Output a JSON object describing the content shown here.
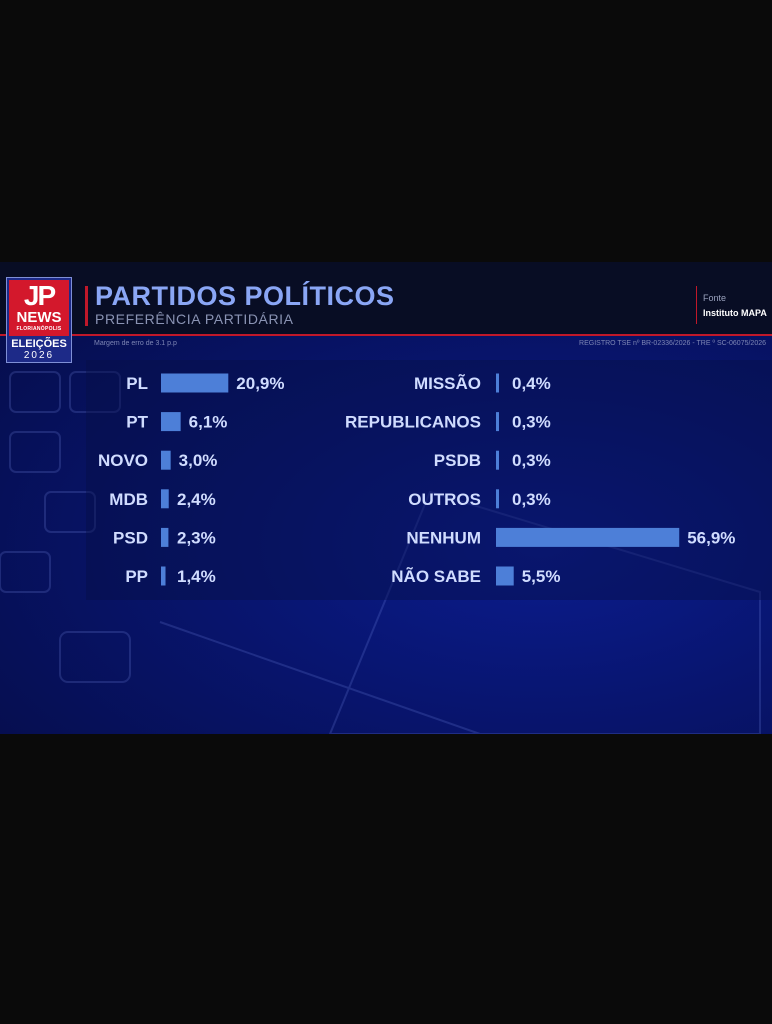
{
  "header": {
    "logo": {
      "jp": "JP",
      "news": "NEWS",
      "city": "FLORIANÓPOLIS",
      "elections": "ELEIÇÕES",
      "year": "2026"
    },
    "title": "PARTIDOS POLÍTICOS",
    "subtitle": "PREFERÊNCIA PARTIDÁRIA",
    "source_label": "Fonte",
    "source_name": "Instituto MAPA",
    "margin_note": "Margem de erro de 3.1 p.p",
    "registry": "REGISTRO TSE nº BR-02336/2026 - TRE º SC-06075/2026"
  },
  "colors": {
    "bar": "#4d7fd8",
    "accent_red": "#c0182a",
    "title": "#8aa6f5"
  },
  "chart_data": [
    {
      "type": "bar",
      "orientation": "horizontal",
      "categories": [
        "PL",
        "PT",
        "NOVO",
        "MDB",
        "PSD",
        "PP"
      ],
      "values": [
        20.9,
        6.1,
        3.0,
        2.4,
        2.3,
        1.4
      ],
      "labels": [
        "20,9%",
        "6,1%",
        "3,0%",
        "2,4%",
        "2,3%",
        "1,4%"
      ]
    },
    {
      "type": "bar",
      "orientation": "horizontal",
      "categories": [
        "MISSÃO",
        "REPUBLICANOS",
        "PSDB",
        "OUTROS",
        "NENHUM",
        "NÃO SABE"
      ],
      "values": [
        0.4,
        0.3,
        0.3,
        0.3,
        56.9,
        5.5
      ],
      "labels": [
        "0,4%",
        "0,3%",
        "0,3%",
        "0,3%",
        "56,9%",
        "5,5%"
      ]
    }
  ]
}
